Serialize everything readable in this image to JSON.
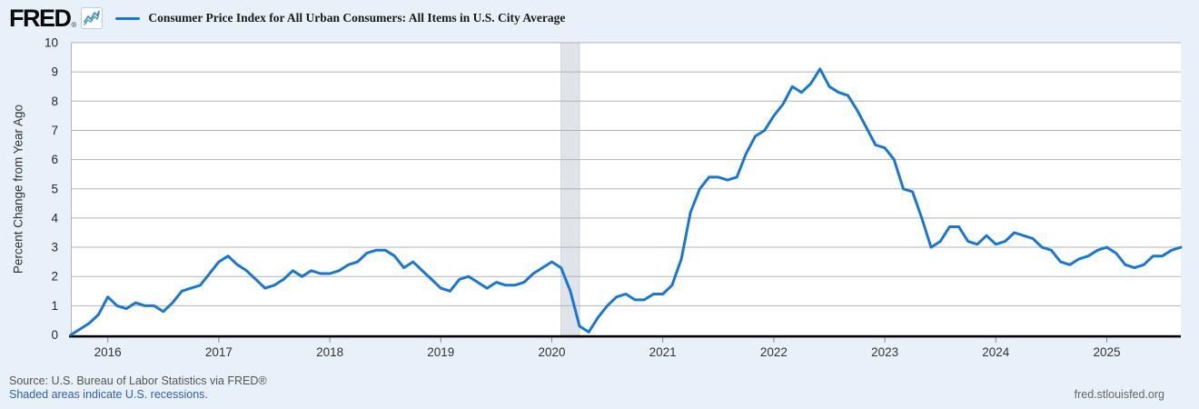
{
  "header": {
    "logo_text": "FRED",
    "registered_mark": "®",
    "sparkline_icon": "line-chart-sparkline"
  },
  "chart_data": {
    "type": "line",
    "title": "Consumer Price Index for All Urban Consumers: All Items in U.S. City Average",
    "ylabel": "Percent Change from Year Ago",
    "xlabel": "",
    "ylim": [
      0,
      10
    ],
    "xlim_decimal_years": [
      2015.667,
      2025.667
    ],
    "y_ticks": [
      0,
      1,
      2,
      3,
      4,
      5,
      6,
      7,
      8,
      9,
      10
    ],
    "x_tick_years": [
      2016,
      2017,
      2018,
      2019,
      2020,
      2021,
      2022,
      2023,
      2024,
      2025
    ],
    "grid": "horizontal",
    "legend_position": "top",
    "series": [
      {
        "name": "Consumer Price Index for All Urban Consumers: All Items in U.S. City Average",
        "color": "#1976d2",
        "frequency": "monthly",
        "start_decimal_year": 2015.6667,
        "start_label": "Sep 2015",
        "end_label": "Sep 2025",
        "values": [
          0.0,
          0.2,
          0.4,
          0.7,
          1.3,
          1.0,
          0.9,
          1.1,
          1.0,
          1.0,
          0.8,
          1.1,
          1.5,
          1.6,
          1.7,
          2.1,
          2.5,
          2.7,
          2.4,
          2.2,
          1.9,
          1.6,
          1.7,
          1.9,
          2.2,
          2.0,
          2.2,
          2.1,
          2.1,
          2.2,
          2.4,
          2.5,
          2.8,
          2.9,
          2.9,
          2.7,
          2.3,
          2.5,
          2.2,
          1.9,
          1.6,
          1.5,
          1.9,
          2.0,
          1.8,
          1.6,
          1.8,
          1.7,
          1.7,
          1.8,
          2.1,
          2.3,
          2.5,
          2.3,
          1.5,
          0.3,
          0.1,
          0.6,
          1.0,
          1.3,
          1.4,
          1.2,
          1.2,
          1.4,
          1.4,
          1.7,
          2.6,
          4.2,
          5.0,
          5.4,
          5.4,
          5.3,
          5.4,
          6.2,
          6.8,
          7.0,
          7.5,
          7.9,
          8.5,
          8.3,
          8.6,
          9.1,
          8.5,
          8.3,
          8.2,
          7.7,
          7.1,
          6.5,
          6.4,
          6.0,
          5.0,
          4.9,
          4.0,
          3.0,
          3.2,
          3.7,
          3.7,
          3.2,
          3.1,
          3.4,
          3.1,
          3.2,
          3.5,
          3.4,
          3.3,
          3.0,
          2.9,
          2.5,
          2.4,
          2.6,
          2.7,
          2.9,
          3.0,
          2.8,
          2.4,
          2.3,
          2.4,
          2.7,
          2.7,
          2.9,
          3.0
        ]
      }
    ],
    "recession_bands": [
      {
        "start_decimal_year": 2020.083,
        "end_decimal_year": 2020.25
      }
    ]
  },
  "footer": {
    "source_line": "Source: U.S. Bureau of Labor Statistics via FRED®",
    "recession_note": "Shaded areas indicate U.S. recessions.",
    "site_url": "fred.stlouisfed.org"
  },
  "colors": {
    "line": "#1976d2",
    "background": "#e8f1f9",
    "plot_background": "#ffffff",
    "grid": "#b3b3b3",
    "axis": "#000000",
    "recession_band": "#dee4ea",
    "link": "#3060ae",
    "tick_label": "#333333"
  }
}
